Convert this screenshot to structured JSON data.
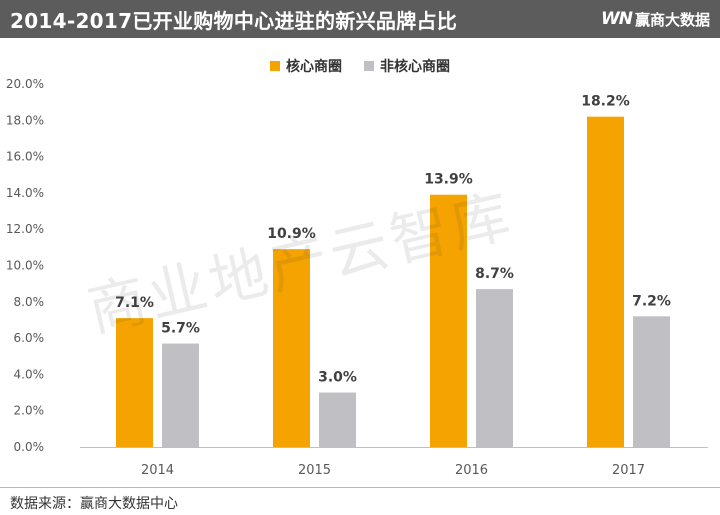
{
  "header": {
    "title": "2014-2017已开业购物中心进驻的新兴品牌占比",
    "brand_logo": "WN",
    "brand_name": "赢商大数据"
  },
  "watermark": "商业地产云智库",
  "source": "数据来源：赢商大数据中心",
  "colors": {
    "core": "#f5a300",
    "non_core": "#c0bfc4",
    "header_bg": "#5c5c5c"
  },
  "chart_data": {
    "type": "bar",
    "categories": [
      "2014",
      "2015",
      "2016",
      "2017"
    ],
    "series": [
      {
        "name": "核心商圈",
        "values": [
          7.1,
          10.9,
          13.9,
          18.2
        ],
        "labels": [
          "7.1%",
          "10.9%",
          "13.9%",
          "18.2%"
        ]
      },
      {
        "name": "非核心商圈",
        "values": [
          5.7,
          3.0,
          8.7,
          7.2
        ],
        "labels": [
          "5.7%",
          "3.0%",
          "8.7%",
          "7.2%"
        ]
      }
    ],
    "ylim": [
      0,
      20
    ],
    "yticks": [
      0,
      2,
      4,
      6,
      8,
      10,
      12,
      14,
      16,
      18,
      20
    ],
    "ytick_labels": [
      "0.0%",
      "2.0%",
      "4.0%",
      "6.0%",
      "8.0%",
      "10.0%",
      "12.0%",
      "14.0%",
      "16.0%",
      "18.0%",
      "20.0%"
    ],
    "legend_position": "top-center",
    "grid": false
  }
}
